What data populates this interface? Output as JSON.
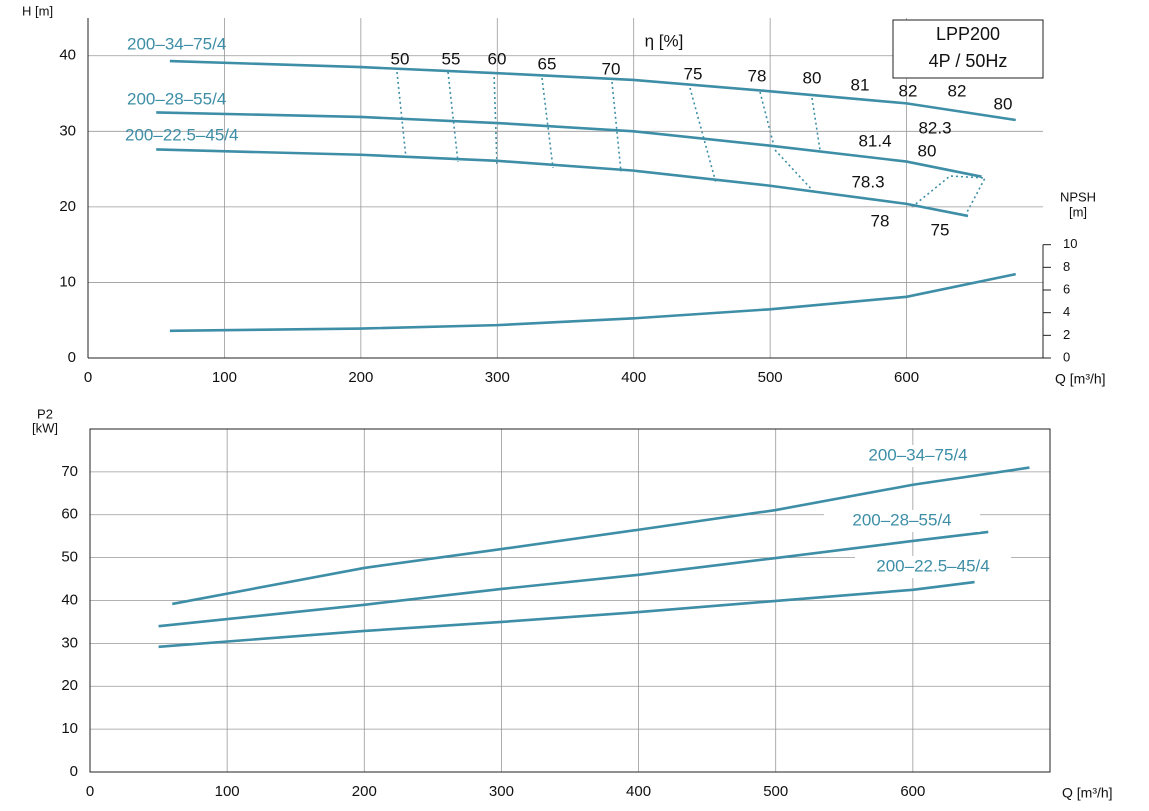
{
  "chart_data": [
    {
      "type": "line",
      "ylabel": "H [m]",
      "xlabel": "Q [m³/h]",
      "y2label": [
        "NPSH",
        "[m]"
      ],
      "eta_label": "η [%]",
      "box_lines": [
        "LPP200",
        "4P / 50Hz"
      ],
      "efficiency_labels": [
        "50",
        "55",
        "60",
        "65",
        "70",
        "75",
        "78",
        "80",
        "81",
        "82",
        "82",
        "80",
        "81.4",
        "82.3",
        "80",
        "78.3",
        "78",
        "75"
      ],
      "xlim": [
        0,
        700
      ],
      "xticks": [
        0,
        100,
        200,
        300,
        400,
        500,
        600
      ],
      "ylim": [
        0,
        45
      ],
      "yticks": [
        0,
        10,
        20,
        30,
        40
      ],
      "y2lim": [
        0,
        30
      ],
      "y2ticks": [
        0,
        2,
        4,
        6,
        8,
        10
      ],
      "grid": true,
      "series": [
        {
          "name": "200–34–75/4",
          "color": "#3d8ea6",
          "x": [
            60,
            200,
            300,
            400,
            500,
            600,
            680
          ],
          "values": [
            39.3,
            38.5,
            37.7,
            36.8,
            35.3,
            33.7,
            31.5
          ]
        },
        {
          "name": "200–28–55/4",
          "color": "#3d8ea6",
          "x": [
            50,
            200,
            300,
            400,
            500,
            600,
            655
          ],
          "values": [
            32.5,
            31.9,
            31.1,
            30,
            28.1,
            26,
            24
          ]
        },
        {
          "name": "200–22.5–45/4",
          "color": "#3d8ea6",
          "x": [
            50,
            200,
            300,
            400,
            500,
            600,
            645
          ],
          "values": [
            27.6,
            26.9,
            26.1,
            24.8,
            22.8,
            20.4,
            18.8
          ]
        },
        {
          "color": "#3d8ea6",
          "axis": "y2",
          "x": [
            60,
            200,
            300,
            400,
            500,
            600,
            680
          ],
          "values": [
            2.4,
            2.6,
            2.9,
            3.5,
            4.3,
            5.4,
            7.4
          ]
        }
      ]
    },
    {
      "type": "line",
      "ylabel": [
        "P2",
        "[kW]"
      ],
      "xlabel": "Q [m³/h]",
      "xlim": [
        0,
        700
      ],
      "xticks": [
        0,
        100,
        200,
        300,
        400,
        500,
        600
      ],
      "ylim": [
        0,
        80
      ],
      "yticks": [
        0,
        10,
        20,
        30,
        40,
        50,
        60,
        70
      ],
      "grid": true,
      "series": [
        {
          "name": "200–34–75/4",
          "color": "#3d8ea6",
          "x": [
            60,
            200,
            300,
            400,
            500,
            600,
            685
          ],
          "values": [
            39.2,
            47.6,
            52,
            56.5,
            61.1,
            67,
            71
          ]
        },
        {
          "name": "200–28–55/4",
          "color": "#3d8ea6",
          "x": [
            50,
            200,
            300,
            400,
            500,
            600,
            655
          ],
          "values": [
            34,
            39,
            42.7,
            46,
            49.9,
            53.9,
            56
          ]
        },
        {
          "name": "200–22.5–45/4",
          "color": "#3d8ea6",
          "x": [
            50,
            200,
            300,
            400,
            500,
            600,
            645
          ],
          "values": [
            29.2,
            32.9,
            35,
            37.3,
            39.9,
            42.5,
            44.3
          ]
        }
      ]
    }
  ]
}
